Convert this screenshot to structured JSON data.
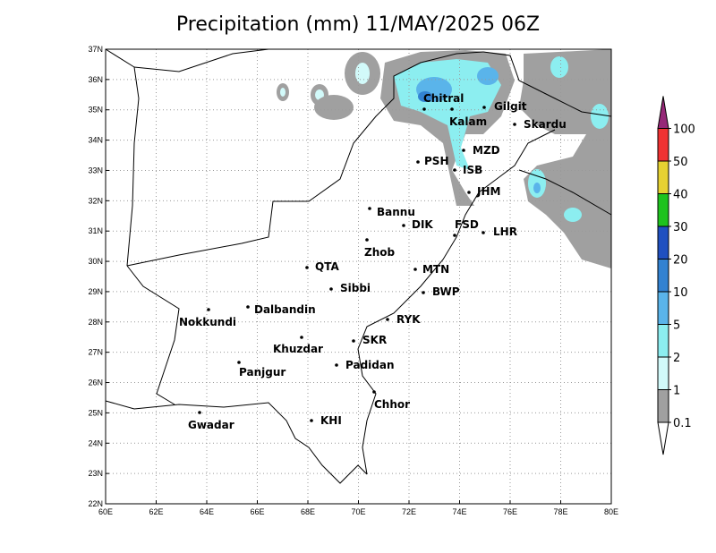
{
  "title": "Precipitation (mm) 11/MAY/2025 06Z",
  "map": {
    "lon_ticks": [
      {
        "value": 60,
        "label": "60E"
      },
      {
        "value": 62,
        "label": "62E"
      },
      {
        "value": 64,
        "label": "64E"
      },
      {
        "value": 66,
        "label": "66E"
      },
      {
        "value": 68,
        "label": "68E"
      },
      {
        "value": 70,
        "label": "70E"
      },
      {
        "value": 72,
        "label": "72E"
      },
      {
        "value": 74,
        "label": "74E"
      },
      {
        "value": 76,
        "label": "76E"
      },
      {
        "value": 78,
        "label": "78E"
      },
      {
        "value": 80,
        "label": "80E"
      }
    ],
    "lat_ticks": [
      {
        "value": 22,
        "label": "22N"
      },
      {
        "value": 23,
        "label": "23N"
      },
      {
        "value": 24,
        "label": "24N"
      },
      {
        "value": 25,
        "label": "25N"
      },
      {
        "value": 26,
        "label": "26N"
      },
      {
        "value": 27,
        "label": "27N"
      },
      {
        "value": 28,
        "label": "28N"
      },
      {
        "value": 29,
        "label": "29N"
      },
      {
        "value": 30,
        "label": "30N"
      },
      {
        "value": 31,
        "label": "31N"
      },
      {
        "value": 32,
        "label": "32N"
      },
      {
        "value": 33,
        "label": "33N"
      },
      {
        "value": 34,
        "label": "34N"
      },
      {
        "value": 35,
        "label": "35N"
      },
      {
        "value": 36,
        "label": "36N"
      },
      {
        "value": 37,
        "label": "37N"
      }
    ],
    "cities": [
      "Chitral",
      "Gilgit",
      "Kalam",
      "Skardu",
      "MZD",
      "PSH",
      "ISB",
      "JHM",
      "Bannu",
      "DIK",
      "FSD",
      "LHR",
      "Zhob",
      "QTA",
      "MTN",
      "Sibbi",
      "BWP",
      "Dalbandin",
      "Nokkundi",
      "RYK",
      "Khuzdar",
      "SKR",
      "Padidan",
      "Panjgur",
      "Chhor",
      "KHI",
      "Gwadar"
    ]
  },
  "legend": {
    "levels": [
      0.1,
      1,
      2,
      5,
      10,
      20,
      30,
      40,
      50,
      100
    ],
    "colors": [
      "#a0a0a0",
      "#d2fafa",
      "#8ceef0",
      "#5ab4ea",
      "#3282d2",
      "#2050c0",
      "#1ec31e",
      "#e6d232",
      "#f03232",
      "#962878"
    ]
  }
}
